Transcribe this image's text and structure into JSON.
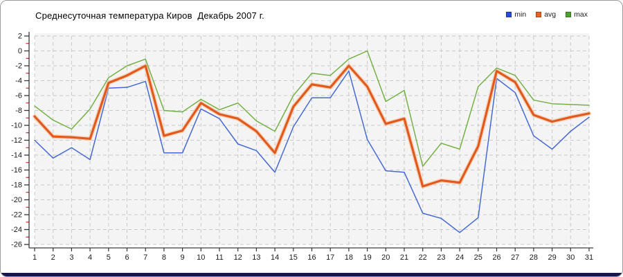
{
  "window": {
    "title": "Среднесуточная температура Киров  Декабрь 2007 г."
  },
  "legend": [
    {
      "label": "min",
      "color": "#2a4bd7"
    },
    {
      "label": "avg",
      "color": "#e8611f"
    },
    {
      "label": "max",
      "color": "#4aa32a"
    }
  ],
  "colors": {
    "plot_bg": "#f4f4f4",
    "grid": "#c9c9c9",
    "axis": "#3a3a3a",
    "tick_major": "#333333",
    "tick_minor": "#c00000",
    "tick_label": "#1a1a1a",
    "bottom_bar": "#15154f",
    "border": "#9b9b9b"
  },
  "chart_data": {
    "type": "line",
    "title": "Среднесуточная температура Киров  Декабрь 2007 г.",
    "xlabel": "",
    "ylabel": "",
    "x": [
      1,
      2,
      3,
      4,
      5,
      6,
      7,
      8,
      9,
      10,
      11,
      12,
      13,
      14,
      15,
      16,
      17,
      18,
      19,
      20,
      21,
      22,
      23,
      24,
      25,
      26,
      27,
      28,
      29,
      30,
      31
    ],
    "xtick_labels": [
      "1",
      "2",
      "3",
      "4",
      "5",
      "6",
      "7",
      "8",
      "9",
      "10",
      "11",
      "12",
      "13",
      "14",
      "15",
      "16",
      "17",
      "18",
      "19",
      "20",
      "21",
      "22",
      "23",
      "24",
      "25",
      "26",
      "27",
      "28",
      "29",
      "30",
      "31"
    ],
    "ylim": [
      -26,
      2
    ],
    "ytick_step": 2,
    "ytick_labels": [
      "2",
      "0",
      "-2",
      "-4",
      "-6",
      "-8",
      "-10",
      "-12",
      "-14",
      "-16",
      "-18",
      "-20",
      "-22",
      "-24",
      "-26"
    ],
    "grid": "dashed",
    "legend_position": "top-right",
    "series": [
      {
        "name": "min",
        "color": "#4569d0",
        "stroke_width": 1.5,
        "values": [
          -12.0,
          -14.4,
          -13.0,
          -14.6,
          -5.0,
          -4.9,
          -4.1,
          -13.7,
          -13.7,
          -7.8,
          -9.1,
          -12.5,
          -13.4,
          -16.3,
          -10.2,
          -6.3,
          -6.3,
          -2.7,
          -11.9,
          -16.1,
          -16.3,
          -21.8,
          -22.5,
          -24.4,
          -22.4,
          -3.7,
          -5.6,
          -11.4,
          -13.2,
          -10.8,
          -8.9
        ]
      },
      {
        "name": "avg",
        "color": "#e05a1e",
        "halo": "#f6c09a",
        "stroke_width": 3.2,
        "values": [
          -8.8,
          -11.5,
          -11.6,
          -11.8,
          -4.3,
          -3.3,
          -2.0,
          -11.4,
          -10.7,
          -7.0,
          -8.5,
          -9.1,
          -10.8,
          -13.7,
          -7.5,
          -4.5,
          -4.9,
          -2.0,
          -4.8,
          -9.8,
          -9.1,
          -18.2,
          -17.4,
          -17.7,
          -12.8,
          -2.7,
          -4.2,
          -8.6,
          -9.5,
          -8.9,
          -8.4
        ]
      },
      {
        "name": "max",
        "color": "#74b044",
        "stroke_width": 1.5,
        "values": [
          -7.4,
          -9.3,
          -10.5,
          -7.8,
          -3.6,
          -2.0,
          -1.1,
          -8.0,
          -8.2,
          -6.5,
          -7.9,
          -7.0,
          -9.4,
          -10.8,
          -6.0,
          -3.0,
          -3.3,
          -1.1,
          0.0,
          -6.8,
          -5.3,
          -15.5,
          -12.4,
          -13.2,
          -4.8,
          -2.3,
          -3.3,
          -6.6,
          -7.1,
          -7.2,
          -7.3
        ]
      }
    ]
  }
}
